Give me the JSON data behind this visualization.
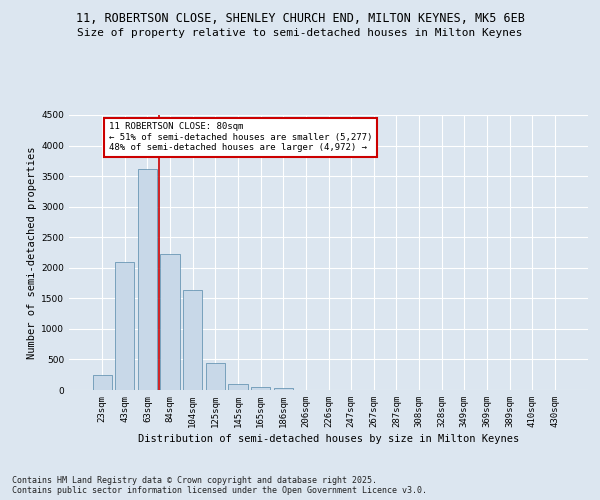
{
  "title_line1": "11, ROBERTSON CLOSE, SHENLEY CHURCH END, MILTON KEYNES, MK5 6EB",
  "title_line2": "Size of property relative to semi-detached houses in Milton Keynes",
  "xlabel": "Distribution of semi-detached houses by size in Milton Keynes",
  "ylabel": "Number of semi-detached properties",
  "categories": [
    "23sqm",
    "43sqm",
    "63sqm",
    "84sqm",
    "104sqm",
    "125sqm",
    "145sqm",
    "165sqm",
    "186sqm",
    "206sqm",
    "226sqm",
    "247sqm",
    "267sqm",
    "287sqm",
    "308sqm",
    "328sqm",
    "349sqm",
    "369sqm",
    "389sqm",
    "410sqm",
    "430sqm"
  ],
  "values": [
    250,
    2100,
    3620,
    2220,
    1640,
    440,
    105,
    55,
    35,
    0,
    0,
    0,
    0,
    0,
    0,
    0,
    0,
    0,
    0,
    0,
    0
  ],
  "bar_color": "#c8d8e8",
  "bar_edge_color": "#5588aa",
  "vline_x_idx": 2.5,
  "annotation_text": "11 ROBERTSON CLOSE: 80sqm\n← 51% of semi-detached houses are smaller (5,277)\n48% of semi-detached houses are larger (4,972) →",
  "annotation_box_color": "#ffffff",
  "annotation_box_edge": "#cc0000",
  "vline_color": "#cc0000",
  "ylim": [
    0,
    4500
  ],
  "yticks": [
    0,
    500,
    1000,
    1500,
    2000,
    2500,
    3000,
    3500,
    4000,
    4500
  ],
  "footer": "Contains HM Land Registry data © Crown copyright and database right 2025.\nContains public sector information licensed under the Open Government Licence v3.0.",
  "background_color": "#dce6f0",
  "plot_background": "#dce6f0",
  "grid_color": "#ffffff",
  "title_fontsize": 8.5,
  "subtitle_fontsize": 8,
  "axis_label_fontsize": 7.5,
  "tick_fontsize": 6.5,
  "annotation_fontsize": 6.5,
  "footer_fontsize": 6
}
